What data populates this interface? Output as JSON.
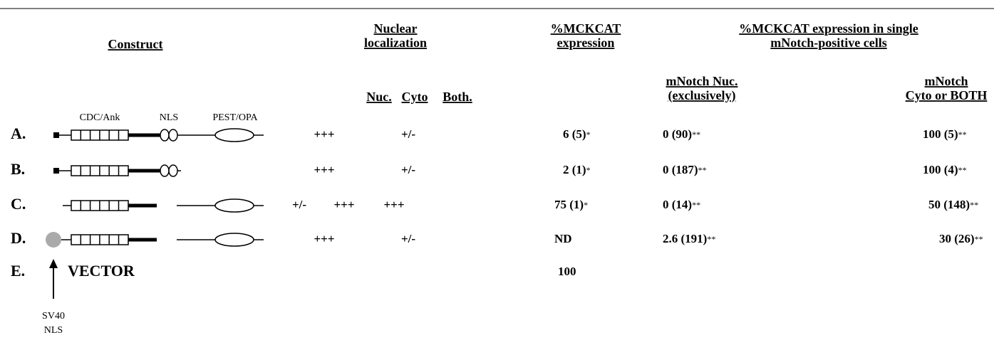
{
  "header": {
    "construct": "Construct",
    "nuclear_localization": [
      "Nuclear",
      "localization"
    ],
    "mckcat_expression": [
      "%MCKCAT",
      "expression"
    ],
    "single_cell": [
      "%MCKCAT expression in single",
      "mNotch-positive cells"
    ],
    "nuc_exclusive": [
      "mNotch Nuc.",
      "(exclusively)"
    ],
    "cyto_or_both": [
      "mNotch",
      "Cyto or BOTH"
    ],
    "nuc": "Nuc.",
    "cyto": "Cyto",
    "both": "Both."
  },
  "domain_labels": [
    "CDC/Ank",
    "NLS",
    "PEST/OPA"
  ],
  "rows": [
    {
      "label": "A.",
      "nuc": "+++",
      "both": "+/-",
      "expression": {
        "text": "6 (5)",
        "mark": "*"
      },
      "nuc_exclusive": {
        "text": "0 (90)",
        "mark": "**"
      },
      "cyto_or_both": {
        "text": "100 (5)",
        "mark": "**"
      }
    },
    {
      "label": "B.",
      "nuc": "+++",
      "both": "+/-",
      "expression": {
        "text": "2 (1)",
        "mark": "*"
      },
      "nuc_exclusive": {
        "text": "0 (187)",
        "mark": "**"
      },
      "cyto_or_both": {
        "text": "100 (4)",
        "mark": "**"
      }
    },
    {
      "label": "C.",
      "nuc": "+/-",
      "cyto": "+++",
      "both": "+++",
      "expression": {
        "text": "75 (1)",
        "mark": "*"
      },
      "nuc_exclusive": {
        "text": "0 (14)",
        "mark": "**"
      },
      "cyto_or_both": {
        "text": "50 (148)",
        "mark": "**"
      }
    },
    {
      "label": "D.",
      "nuc": "+++",
      "both": "+/-",
      "expression": {
        "text": "ND"
      },
      "nuc_exclusive": {
        "text": "2.6 (191)",
        "mark": "**"
      },
      "cyto_or_both": {
        "text": "30 (26)",
        "mark": "**"
      }
    },
    {
      "label": "E.",
      "construct": "VECTOR",
      "expression": {
        "text": "100"
      }
    }
  ],
  "sv40_label": [
    "SV40",
    "NLS"
  ]
}
